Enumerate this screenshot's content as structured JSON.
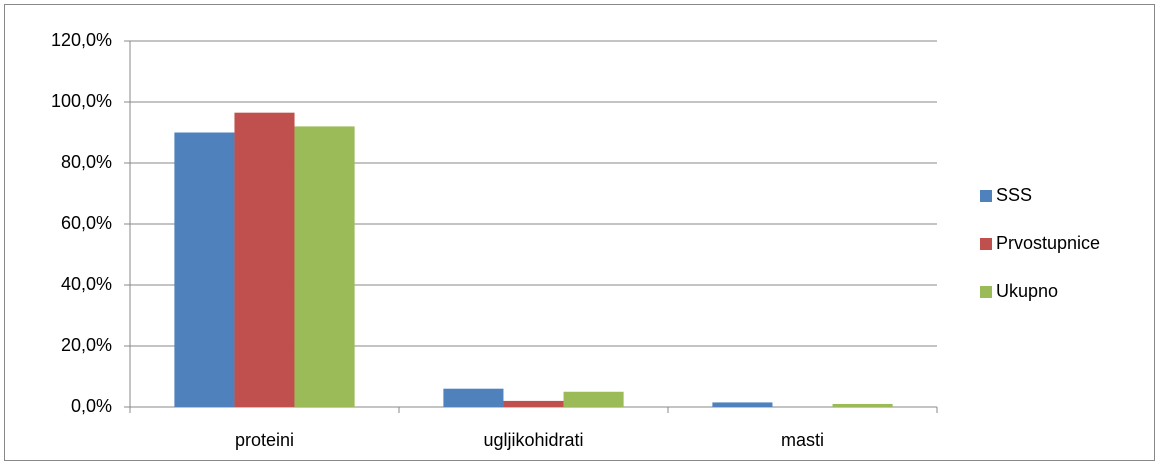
{
  "chart_data": {
    "type": "bar",
    "categories": [
      "proteini",
      "ugljikohidrati",
      "masti"
    ],
    "series": [
      {
        "name": "SSS",
        "color": "#4f81bd",
        "values": [
          90.0,
          6.0,
          1.5
        ]
      },
      {
        "name": "Prvostupnice",
        "color": "#c0504d",
        "values": [
          96.5,
          2.0,
          0.0
        ]
      },
      {
        "name": "Ukupno",
        "color": "#9bbb59",
        "values": [
          92.0,
          5.0,
          1.0
        ]
      }
    ],
    "ylim": [
      0,
      120
    ],
    "yticks": [
      {
        "value": 0,
        "label": "0,0%"
      },
      {
        "value": 20,
        "label": "20,0%"
      },
      {
        "value": 40,
        "label": "40,0%"
      },
      {
        "value": 60,
        "label": "60,0%"
      },
      {
        "value": 80,
        "label": "80,0%"
      },
      {
        "value": 100,
        "label": "100,0%"
      },
      {
        "value": 120,
        "label": "120,0%"
      }
    ],
    "grid": true,
    "legend": "right"
  }
}
